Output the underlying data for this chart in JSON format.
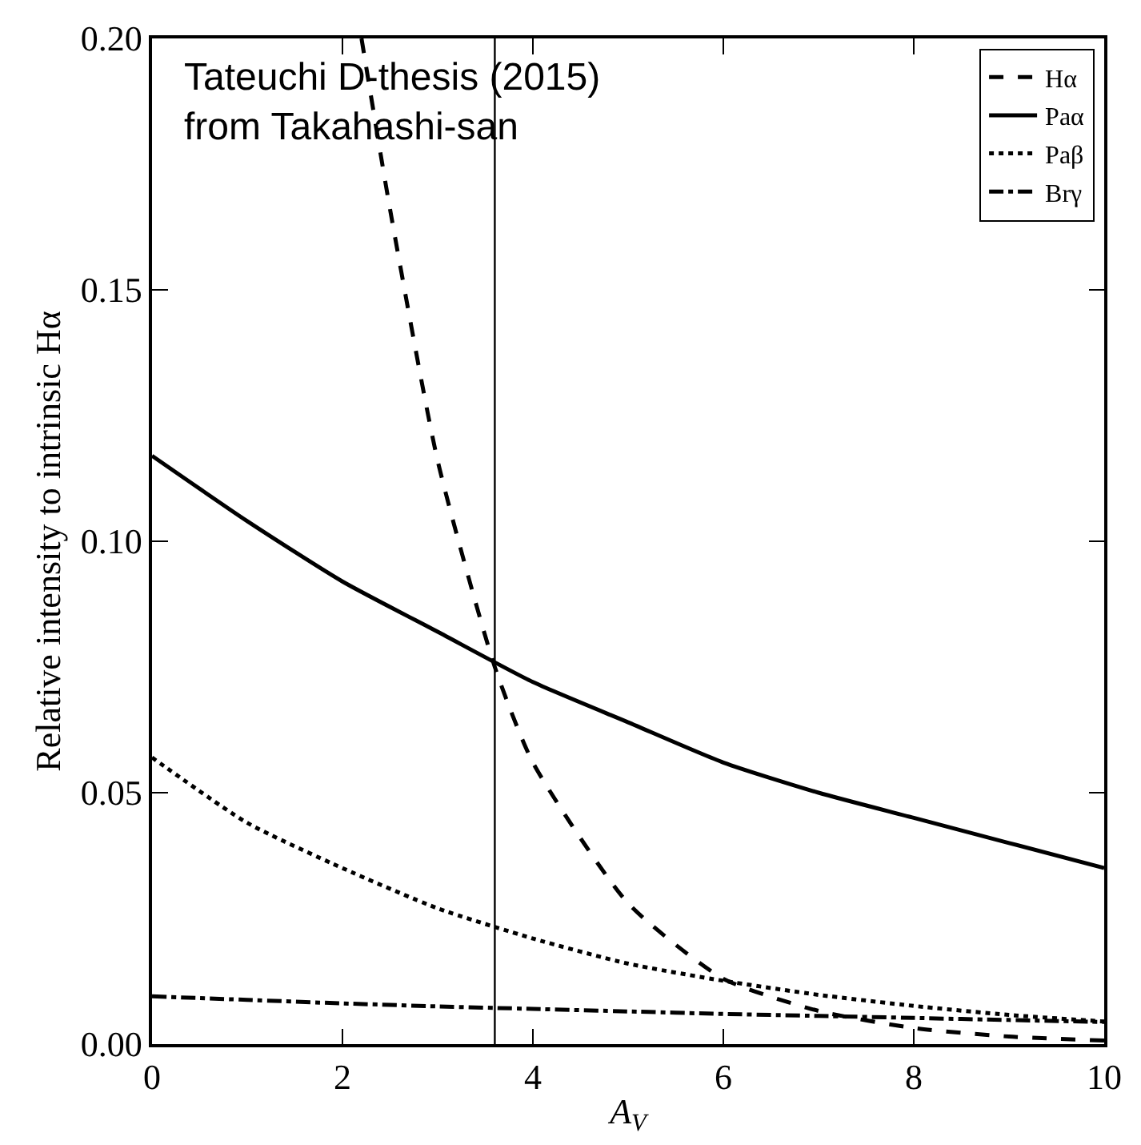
{
  "chart_data": {
    "type": "line",
    "xlabel": "A$_{V}$",
    "ylabel": "Relative intensity to intrinsic Hα",
    "annotations": [
      "Tateuchi D-thesis (2015)\nfrom Takahashi-san"
    ],
    "x": [
      0,
      1,
      2,
      3,
      4,
      5,
      6,
      7,
      8,
      9,
      10
    ],
    "series": [
      {
        "name": "Hα",
        "color": "#000000",
        "line_style": "dashed",
        "x": [
          2.2,
          2.5,
          3,
          3.6,
          4,
          5,
          6,
          7,
          8,
          9,
          10
        ],
        "values": [
          0.2,
          0.166,
          0.116,
          0.075,
          0.056,
          0.028,
          0.013,
          0.0066,
          0.0032,
          0.0015,
          0.0007
        ]
      },
      {
        "name": "Paα",
        "color": "#000000",
        "line_style": "solid",
        "values": [
          0.117,
          0.104,
          0.092,
          0.082,
          0.072,
          0.064,
          0.056,
          0.05,
          0.045,
          0.04,
          0.035
        ]
      },
      {
        "name": "Paβ",
        "color": "#000000",
        "line_style": "dotted",
        "values": [
          0.057,
          0.044,
          0.035,
          0.027,
          0.021,
          0.016,
          0.0126,
          0.0098,
          0.0076,
          0.0058,
          0.0045
        ]
      },
      {
        "name": "Brγ",
        "color": "#000000",
        "line_style": "dashdot",
        "values": [
          0.0095,
          0.0088,
          0.0081,
          0.0075,
          0.007,
          0.0065,
          0.006,
          0.0056,
          0.0052,
          0.0048,
          0.0044
        ]
      }
    ],
    "ref_lines": [
      {
        "axis": "x",
        "value": 3.6,
        "color": "#000000",
        "line_style": "solid"
      }
    ],
    "xlim": [
      0,
      10
    ],
    "xticks": [
      0,
      2,
      4,
      6,
      8,
      10
    ],
    "ylim": [
      0,
      0.2
    ],
    "yticks": [
      {
        "value": 0,
        "label": "0.00"
      },
      {
        "value": 0.05,
        "label": "0.05"
      },
      {
        "value": 0.1,
        "label": "0.10"
      },
      {
        "value": 0.15,
        "label": "0.15"
      },
      {
        "value": 0.2,
        "label": "0.20"
      }
    ],
    "legend": "top right",
    "marker": "none"
  }
}
